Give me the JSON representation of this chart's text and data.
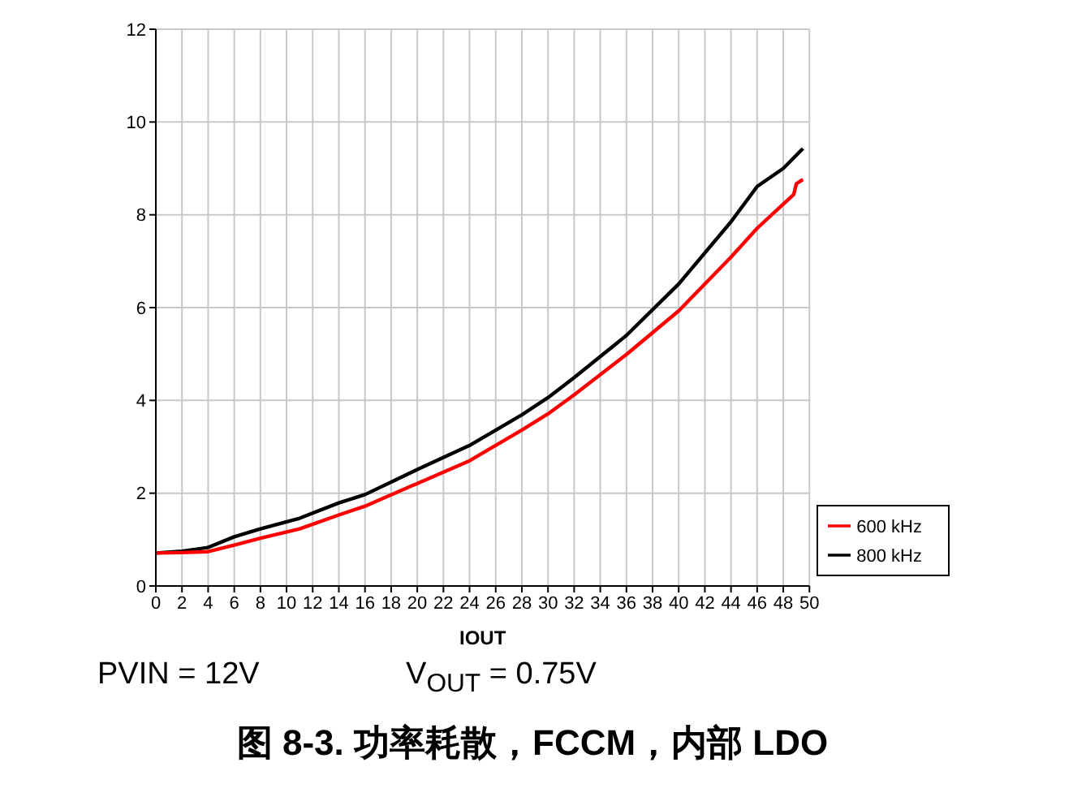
{
  "chart_data": {
    "type": "line",
    "title": "图 8-3. 功率耗散，FCCM，内部 LDO",
    "xlabel": "IOUT",
    "annotations": [
      "PVIN = 12V",
      "V$_{OUT}$ = 0.75V"
    ],
    "x": [
      0,
      2,
      4,
      6,
      8,
      11,
      14,
      16,
      20,
      24,
      28,
      30,
      32,
      36,
      40,
      44,
      46,
      48,
      49.5
    ],
    "series": [
      {
        "name": "800 kHz",
        "color": "#000000",
        "values": [
          0.71,
          0.75,
          0.83,
          1.06,
          1.23,
          1.46,
          1.79,
          1.97,
          2.51,
          3.03,
          3.69,
          4.06,
          4.49,
          5.4,
          6.51,
          7.85,
          8.61,
          9.0,
          9.43
        ]
      },
      {
        "name": "600 kHz",
        "color": "#ff0000",
        "x": [
          0,
          2,
          4,
          6,
          8,
          11,
          14,
          16,
          20,
          24,
          28,
          30,
          32,
          36,
          40,
          44,
          46,
          48.8,
          49,
          49.5
        ],
        "values": [
          0.71,
          0.72,
          0.74,
          0.88,
          1.03,
          1.23,
          1.53,
          1.72,
          2.21,
          2.7,
          3.36,
          3.71,
          4.12,
          4.99,
          5.93,
          7.09,
          7.71,
          8.44,
          8.67,
          8.76
        ]
      }
    ],
    "xlim": [
      0,
      50
    ],
    "xticks": [
      0,
      2,
      4,
      6,
      8,
      10,
      12,
      14,
      16,
      18,
      20,
      22,
      24,
      26,
      28,
      30,
      32,
      34,
      36,
      38,
      40,
      42,
      44,
      46,
      48,
      50
    ],
    "ylim": [
      0,
      12
    ],
    "yticks": [
      0,
      2,
      4,
      6,
      8,
      10,
      12
    ],
    "grid": true,
    "legend": "bottom right",
    "marker": "none",
    "line_style": "solid"
  }
}
